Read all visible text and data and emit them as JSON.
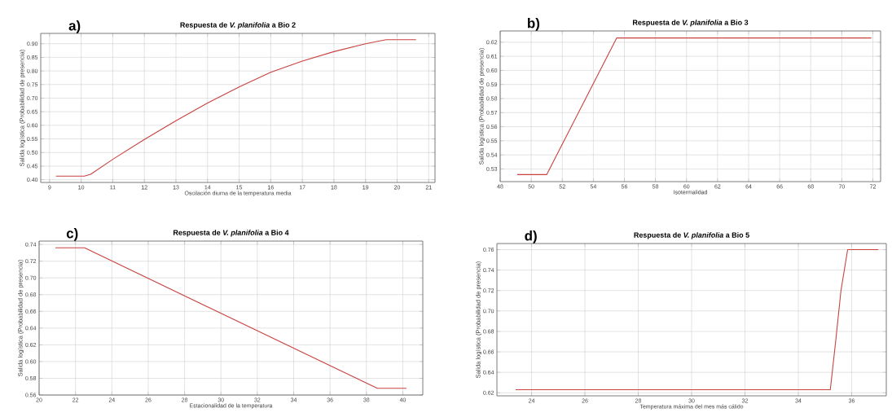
{
  "chart_data": [
    {
      "type": "line",
      "title": "Respuesta de *V. planifolia* a Bio 2",
      "annotations": [
        "a)"
      ],
      "xlabel": "Oscilación diurna de la temperatura media",
      "ylabel": "Salida logística (Probabilidad de presencia)",
      "color": "#c8423f",
      "grid": true,
      "marker": "none",
      "line_style": "solid",
      "x": [
        9.2,
        10.1,
        10.3,
        11,
        12,
        13,
        14,
        15,
        16,
        17,
        18,
        19,
        19.65,
        20.6
      ],
      "values": [
        0.413,
        0.413,
        0.42,
        0.475,
        0.548,
        0.617,
        0.682,
        0.741,
        0.795,
        0.836,
        0.871,
        0.9,
        0.915,
        0.915
      ],
      "xlim": [
        8.72,
        21.2
      ],
      "ylim": [
        0.39,
        0.938
      ],
      "xticks": [
        9,
        10,
        11,
        12,
        13,
        14,
        15,
        16,
        17,
        18,
        19,
        20,
        21
      ],
      "yticks": [
        {
          "value": 0.4,
          "label": "0.40"
        },
        {
          "value": 0.45,
          "label": "0.45"
        },
        {
          "value": 0.5,
          "label": "0.50"
        },
        {
          "value": 0.55,
          "label": "0.55"
        },
        {
          "value": 0.6,
          "label": "0.60"
        },
        {
          "value": 0.65,
          "label": "0.65"
        },
        {
          "value": 0.7,
          "label": "0.70"
        },
        {
          "value": 0.75,
          "label": "0.75"
        },
        {
          "value": 0.8,
          "label": "0.80"
        },
        {
          "value": 0.85,
          "label": "0.85"
        },
        {
          "value": 0.9,
          "label": "0.90"
        }
      ]
    },
    {
      "type": "line",
      "title": "Respuesta de *V. planifolia* a Bio 3",
      "annotations": [
        "b)"
      ],
      "xlabel": "Isotermalidad",
      "ylabel": "Salida logística (Probabilidad de presencia)",
      "color": "#c8423f",
      "grid": true,
      "marker": "none",
      "line_style": "solid",
      "x": [
        49.1,
        51,
        55.5,
        71.9
      ],
      "values": [
        0.526,
        0.526,
        0.623,
        0.623
      ],
      "xlim": [
        48,
        72.5
      ],
      "ylim": [
        0.521,
        0.628
      ],
      "xticks": [
        48,
        50,
        52,
        54,
        56,
        58,
        60,
        62,
        64,
        66,
        68,
        70,
        72
      ],
      "yticks": [
        0.53,
        0.54,
        0.55,
        0.56,
        0.57,
        0.58,
        0.59,
        {
          "value": 0.6,
          "label": "0.60"
        },
        0.61,
        0.62
      ]
    },
    {
      "type": "line",
      "title": "Respuesta de *V. planifolia* a Bio 4",
      "annotations": [
        "c)"
      ],
      "xlabel": "Estacionalidad de la temperatura",
      "ylabel": "Salida logística (Probabilidad de presencia)",
      "color": "#c8423f",
      "grid": true,
      "marker": "none",
      "line_style": "solid",
      "x": [
        20.9,
        22.5,
        38.6,
        40.2
      ],
      "values": [
        0.736,
        0.736,
        0.568,
        0.568
      ],
      "xlim": [
        20,
        41.1
      ],
      "ylim": [
        0.56,
        0.744
      ],
      "xticks": [
        20,
        22,
        24,
        26,
        28,
        30,
        32,
        34,
        36,
        38,
        40
      ],
      "yticks": [
        {
          "value": 0.56,
          "label": "0.56"
        },
        0.58,
        {
          "value": 0.6,
          "label": "0.60"
        },
        0.62,
        0.64,
        0.66,
        0.68,
        {
          "value": 0.7,
          "label": "0.70"
        },
        0.72,
        0.74
      ]
    },
    {
      "type": "line",
      "title": "Respuesta de *V. planifolia* a Bio 5",
      "annotations": [
        "d)"
      ],
      "xlabel": "Temperatura máxima del mes más cálido",
      "ylabel": "Salida logística (Probabilidad de presencia)",
      "color": "#c8423f",
      "grid": true,
      "marker": "none",
      "line_style": "solid",
      "x": [
        23.4,
        35.2,
        35.4,
        35.6,
        35.85,
        37
      ],
      "values": [
        0.623,
        0.623,
        0.67,
        0.72,
        0.76,
        0.76
      ],
      "xlim": [
        22.7,
        37.3
      ],
      "ylim": [
        0.617,
        0.766
      ],
      "xticks": [
        24,
        26,
        28,
        30,
        32,
        34,
        36
      ],
      "yticks": [
        0.62,
        0.64,
        0.66,
        0.68,
        {
          "value": 0.7,
          "label": "0.70"
        },
        0.72,
        0.74,
        0.76
      ]
    }
  ]
}
